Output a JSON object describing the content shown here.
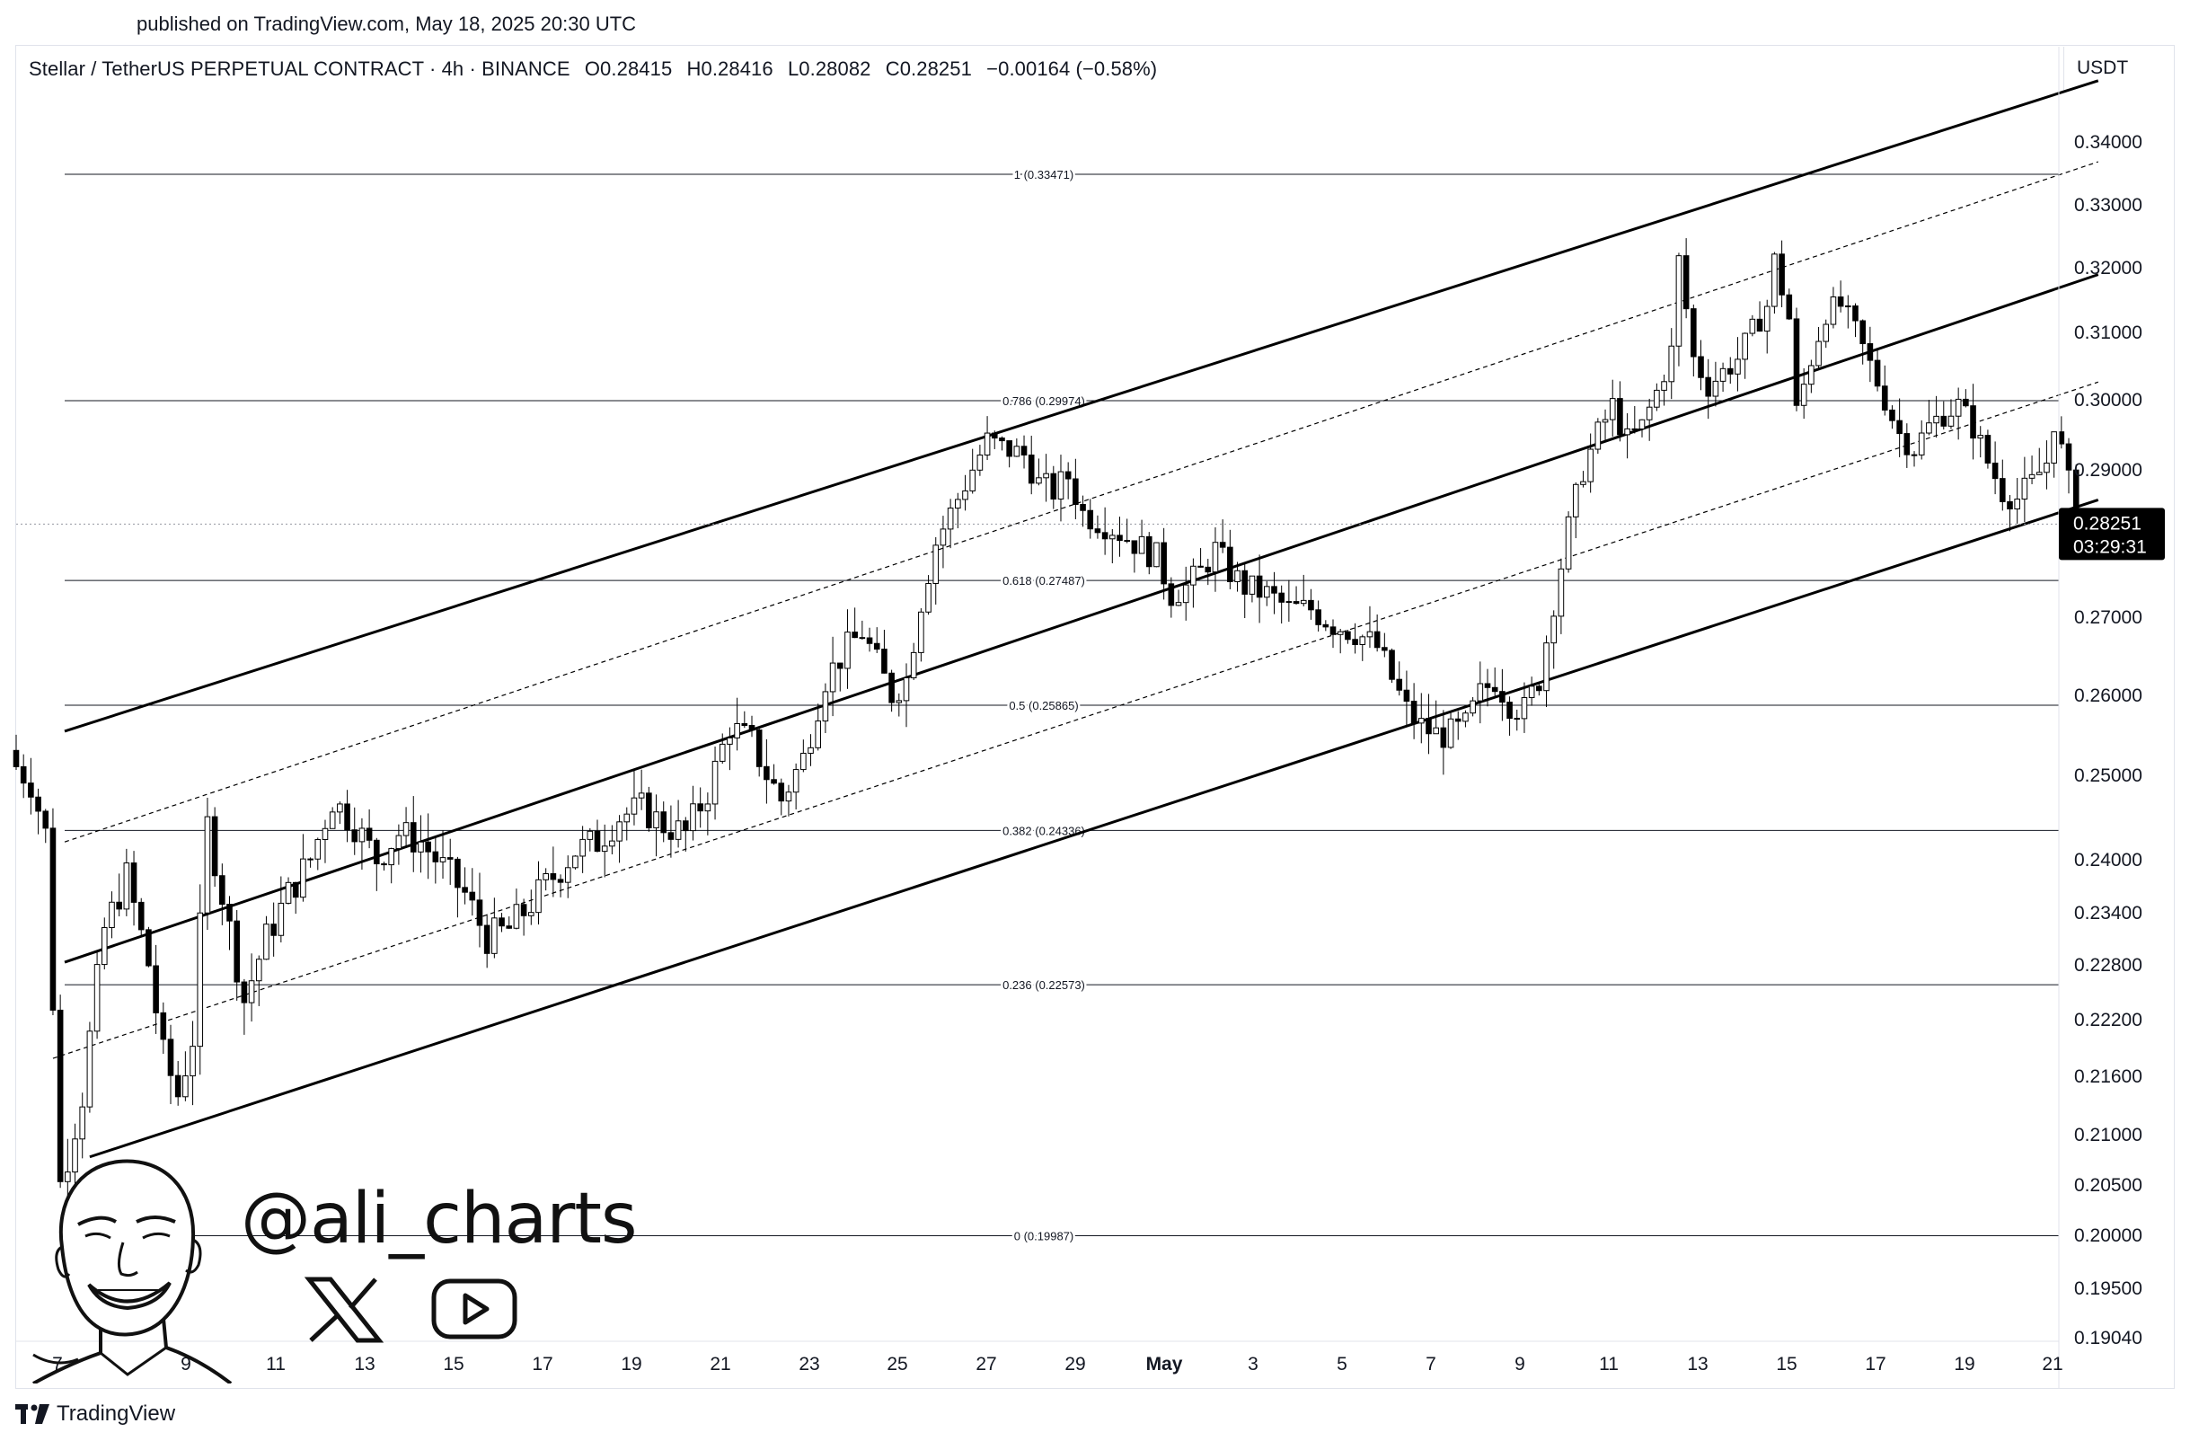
{
  "header": {
    "published": "published on TradingView.com, May 18, 2025 20:30 UTC"
  },
  "legend": {
    "symbol": "Stellar / TetherUS PERPETUAL CONTRACT · 4h · BINANCE",
    "open": "O0.28415",
    "high": "H0.28416",
    "low": "L0.28082",
    "close": "C0.28251",
    "change": "−0.00164 (−0.58%)"
  },
  "currency": "USDT",
  "price_badge": {
    "price": "0.28251",
    "countdown": "03:29:31",
    "color": "#000000"
  },
  "watermark": {
    "handle": "@ali_charts",
    "icons": [
      "avatar-portrait-icon",
      "x-logo-icon",
      "youtube-icon"
    ]
  },
  "footer": {
    "brand": "TradingView"
  },
  "chart_data": {
    "type": "candlestick",
    "timeframe": "4h",
    "y_axis": {
      "ticks": [
        "0.34000",
        "0.33000",
        "0.32000",
        "0.31000",
        "0.30000",
        "0.29000",
        "0.27000",
        "0.26000",
        "0.25000",
        "0.24000",
        "0.23400",
        "0.22800",
        "0.22200",
        "0.21600",
        "0.21000",
        "0.20500",
        "0.20000",
        "0.19500",
        "0.19040"
      ],
      "range": [
        0.1904,
        0.3447
      ]
    },
    "x_axis": {
      "ticks": [
        "7",
        "9",
        "11",
        "13",
        "15",
        "17",
        "19",
        "21",
        "23",
        "25",
        "27",
        "29",
        "May",
        "3",
        "5",
        "7",
        "9",
        "11",
        "13",
        "15",
        "17",
        "19",
        "21"
      ]
    },
    "fibonacci": [
      {
        "label": "1 (0.33471)",
        "value": 0.33471
      },
      {
        "label": "0.786 (0.29974)",
        "value": 0.29974
      },
      {
        "label": "0.618 (0.27487)",
        "value": 0.27487
      },
      {
        "label": "0.5 (0.25865)",
        "value": 0.25865
      },
      {
        "label": "0.382 (0.24336)",
        "value": 0.24336
      },
      {
        "label": "0.236 (0.22573)",
        "value": 0.22573
      },
      {
        "label": "0 (0.19987)",
        "value": 0.19987
      }
    ],
    "current_price": 0.28251,
    "price_path": [
      [
        0,
        0.251
      ],
      [
        2,
        0.249
      ],
      [
        4,
        0.243
      ],
      [
        6,
        0.205
      ],
      [
        9,
        0.214
      ],
      [
        12,
        0.232
      ],
      [
        15,
        0.238
      ],
      [
        18,
        0.228
      ],
      [
        20,
        0.218
      ],
      [
        22,
        0.214
      ],
      [
        24,
        0.22
      ],
      [
        26,
        0.244
      ],
      [
        28,
        0.236
      ],
      [
        31,
        0.224
      ],
      [
        34,
        0.231
      ],
      [
        37,
        0.236
      ],
      [
        40,
        0.24
      ],
      [
        43,
        0.247
      ],
      [
        46,
        0.244
      ],
      [
        49,
        0.24
      ],
      [
        52,
        0.243
      ],
      [
        55,
        0.242
      ],
      [
        58,
        0.239
      ],
      [
        61,
        0.236
      ],
      [
        64,
        0.231
      ],
      [
        67,
        0.232
      ],
      [
        70,
        0.235
      ],
      [
        73,
        0.238
      ],
      [
        76,
        0.241
      ],
      [
        79,
        0.242
      ],
      [
        82,
        0.245
      ],
      [
        85,
        0.246
      ],
      [
        88,
        0.244
      ],
      [
        91,
        0.243
      ],
      [
        94,
        0.248
      ],
      [
        97,
        0.256
      ],
      [
        100,
        0.254
      ],
      [
        102,
        0.25
      ],
      [
        104,
        0.247
      ],
      [
        107,
        0.252
      ],
      [
        110,
        0.262
      ],
      [
        113,
        0.266
      ],
      [
        115,
        0.268
      ],
      [
        117,
        0.264
      ],
      [
        119,
        0.26
      ],
      [
        121,
        0.262
      ],
      [
        123,
        0.272
      ],
      [
        125,
        0.28
      ],
      [
        127,
        0.284
      ],
      [
        130,
        0.29
      ],
      [
        132,
        0.294
      ],
      [
        134,
        0.293
      ],
      [
        137,
        0.292
      ],
      [
        139,
        0.288
      ],
      [
        141,
        0.287
      ],
      [
        143,
        0.289
      ],
      [
        145,
        0.284
      ],
      [
        147,
        0.283
      ],
      [
        149,
        0.282
      ],
      [
        152,
        0.28
      ],
      [
        155,
        0.278
      ],
      [
        157,
        0.273
      ],
      [
        159,
        0.274
      ],
      [
        161,
        0.276
      ],
      [
        163,
        0.279
      ],
      [
        165,
        0.276
      ],
      [
        167,
        0.274
      ],
      [
        170,
        0.273
      ],
      [
        173,
        0.271
      ],
      [
        176,
        0.271
      ],
      [
        179,
        0.269
      ],
      [
        182,
        0.268
      ],
      [
        185,
        0.266
      ],
      [
        187,
        0.262
      ],
      [
        189,
        0.258
      ],
      [
        191,
        0.256
      ],
      [
        193,
        0.255
      ],
      [
        195,
        0.255
      ],
      [
        197,
        0.256
      ],
      [
        199,
        0.26
      ],
      [
        201,
        0.262
      ],
      [
        203,
        0.259
      ],
      [
        205,
        0.258
      ],
      [
        207,
        0.262
      ],
      [
        209,
        0.272
      ],
      [
        211,
        0.282
      ],
      [
        213,
        0.29
      ],
      [
        215,
        0.295
      ],
      [
        217,
        0.299
      ],
      [
        219,
        0.294
      ],
      [
        221,
        0.296
      ],
      [
        223,
        0.301
      ],
      [
        225,
        0.307
      ],
      [
        226,
        0.321
      ],
      [
        228,
        0.306
      ],
      [
        230,
        0.302
      ],
      [
        232,
        0.304
      ],
      [
        234,
        0.306
      ],
      [
        236,
        0.31
      ],
      [
        238,
        0.314
      ],
      [
        239,
        0.321
      ],
      [
        241,
        0.312
      ],
      [
        242,
        0.298
      ],
      [
        244,
        0.306
      ],
      [
        246,
        0.313
      ],
      [
        248,
        0.314
      ],
      [
        250,
        0.31
      ],
      [
        252,
        0.305
      ],
      [
        254,
        0.3
      ],
      [
        256,
        0.295
      ],
      [
        258,
        0.293
      ],
      [
        260,
        0.296
      ],
      [
        262,
        0.298
      ],
      [
        264,
        0.299
      ],
      [
        266,
        0.296
      ],
      [
        268,
        0.291
      ],
      [
        270,
        0.287
      ],
      [
        272,
        0.286
      ],
      [
        274,
        0.288
      ],
      [
        276,
        0.291
      ],
      [
        277,
        0.297
      ],
      [
        279,
        0.288
      ],
      [
        280,
        0.282
      ]
    ],
    "channel_lines": [
      {
        "style": "solid",
        "from": [
          0,
          0.2554
        ],
        "to": [
          283,
          0.3496
        ]
      },
      {
        "style": "solid",
        "from": [
          0,
          0.2282
        ],
        "to": [
          283,
          0.3188
        ]
      },
      {
        "style": "solid",
        "from": [
          10,
          0.2077
        ],
        "to": [
          283,
          0.2858
        ]
      },
      {
        "style": "dashed",
        "from": [
          0,
          0.242
        ],
        "to": [
          283,
          0.3367
        ]
      },
      {
        "style": "dashed",
        "from": [
          5,
          0.2178
        ],
        "to": [
          283,
          0.3025
        ]
      }
    ]
  }
}
